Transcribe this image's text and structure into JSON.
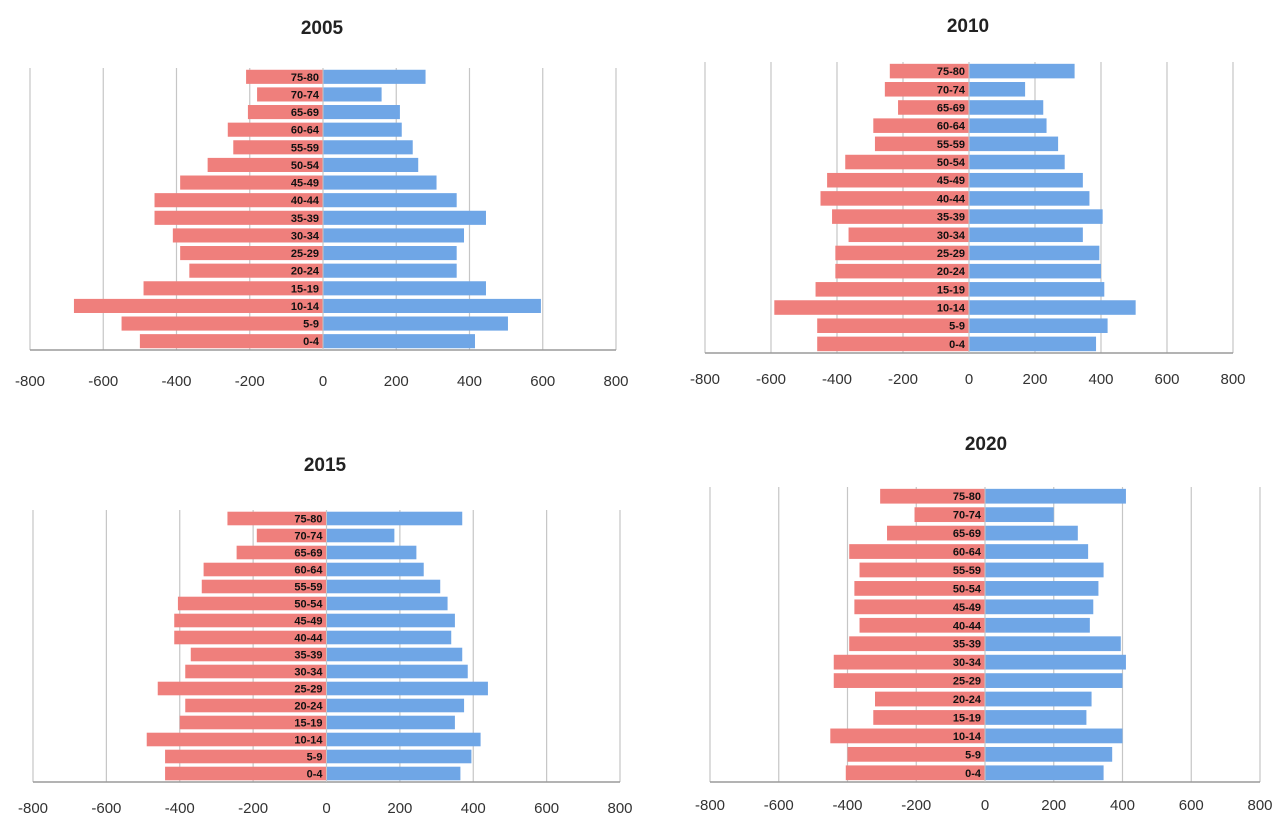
{
  "chart_data": [
    {
      "type": "bar",
      "orientation": "horizontal",
      "title": "2005",
      "categories": [
        "0-4",
        "5-9",
        "10-14",
        "15-19",
        "20-24",
        "25-29",
        "30-34",
        "35-39",
        "40-44",
        "45-49",
        "50-54",
        "55-59",
        "60-64",
        "65-69",
        "70-74",
        "75-80"
      ],
      "series": [
        {
          "values": [
            -500,
            -550,
            -680,
            -490,
            -365,
            -390,
            -410,
            -460,
            -460,
            -390,
            -315,
            -245,
            -260,
            -205,
            -180,
            -210
          ]
        },
        {
          "values": [
            415,
            505,
            595,
            445,
            365,
            365,
            385,
            445,
            365,
            310,
            260,
            245,
            215,
            210,
            160,
            280
          ]
        }
      ],
      "xticks": [
        "-800",
        "-600",
        "-400",
        "-200",
        "0",
        "200",
        "400",
        "600",
        "800"
      ],
      "xlim": [
        -800,
        800
      ]
    },
    {
      "type": "bar",
      "orientation": "horizontal",
      "title": "2010",
      "categories": [
        "0-4",
        "5-9",
        "10-14",
        "15-19",
        "20-24",
        "25-29",
        "30-34",
        "35-39",
        "40-44",
        "45-49",
        "50-54",
        "55-59",
        "60-64",
        "65-69",
        "70-74",
        "75-80"
      ],
      "series": [
        {
          "values": [
            -460,
            -460,
            -590,
            -465,
            -405,
            -405,
            -365,
            -415,
            -450,
            -430,
            -375,
            -285,
            -290,
            -215,
            -255,
            -240
          ]
        },
        {
          "values": [
            385,
            420,
            505,
            410,
            400,
            395,
            345,
            405,
            365,
            345,
            290,
            270,
            235,
            225,
            170,
            320
          ]
        }
      ],
      "xticks": [
        "-800",
        "-600",
        "-400",
        "-200",
        "0",
        "200",
        "400",
        "600",
        "800"
      ],
      "xlim": [
        -800,
        800
      ]
    },
    {
      "type": "bar",
      "orientation": "horizontal",
      "title": "2015",
      "categories": [
        "0-4",
        "5-9",
        "10-14",
        "15-19",
        "20-24",
        "25-29",
        "30-34",
        "35-39",
        "40-44",
        "45-49",
        "50-54",
        "55-59",
        "60-64",
        "65-69",
        "70-74",
        "75-80"
      ],
      "series": [
        {
          "values": [
            -440,
            -440,
            -490,
            -400,
            -385,
            -460,
            -385,
            -370,
            -415,
            -415,
            -405,
            -340,
            -335,
            -245,
            -190,
            -270
          ]
        },
        {
          "values": [
            365,
            395,
            420,
            350,
            375,
            440,
            385,
            370,
            340,
            350,
            330,
            310,
            265,
            245,
            185,
            370
          ]
        }
      ],
      "xticks": [
        "-800",
        "-600",
        "-400",
        "-200",
        "0",
        "200",
        "400",
        "600",
        "800"
      ],
      "xlim": [
        -800,
        800
      ]
    },
    {
      "type": "bar",
      "orientation": "horizontal",
      "title": "2020",
      "categories": [
        "0-4",
        "5-9",
        "10-14",
        "15-19",
        "20-24",
        "25-29",
        "30-34",
        "35-39",
        "40-44",
        "45-49",
        "50-54",
        "55-59",
        "60-64",
        "65-69",
        "70-74",
        "75-80"
      ],
      "series": [
        {
          "values": [
            -405,
            -400,
            -450,
            -325,
            -320,
            -440,
            -440,
            -395,
            -365,
            -380,
            -380,
            -365,
            -395,
            -285,
            -205,
            -305
          ]
        },
        {
          "values": [
            345,
            370,
            400,
            295,
            310,
            400,
            410,
            395,
            305,
            315,
            330,
            345,
            300,
            270,
            200,
            410
          ]
        }
      ],
      "xticks": [
        "-800",
        "-600",
        "-400",
        "-200",
        "0",
        "200",
        "400",
        "600",
        "800"
      ],
      "xlim": [
        -800,
        800
      ]
    }
  ],
  "colors": {
    "left": "#ef7f7c",
    "right": "#6fa6e6",
    "grid": "#c6c6c6",
    "axis": "#9a9a9a"
  }
}
